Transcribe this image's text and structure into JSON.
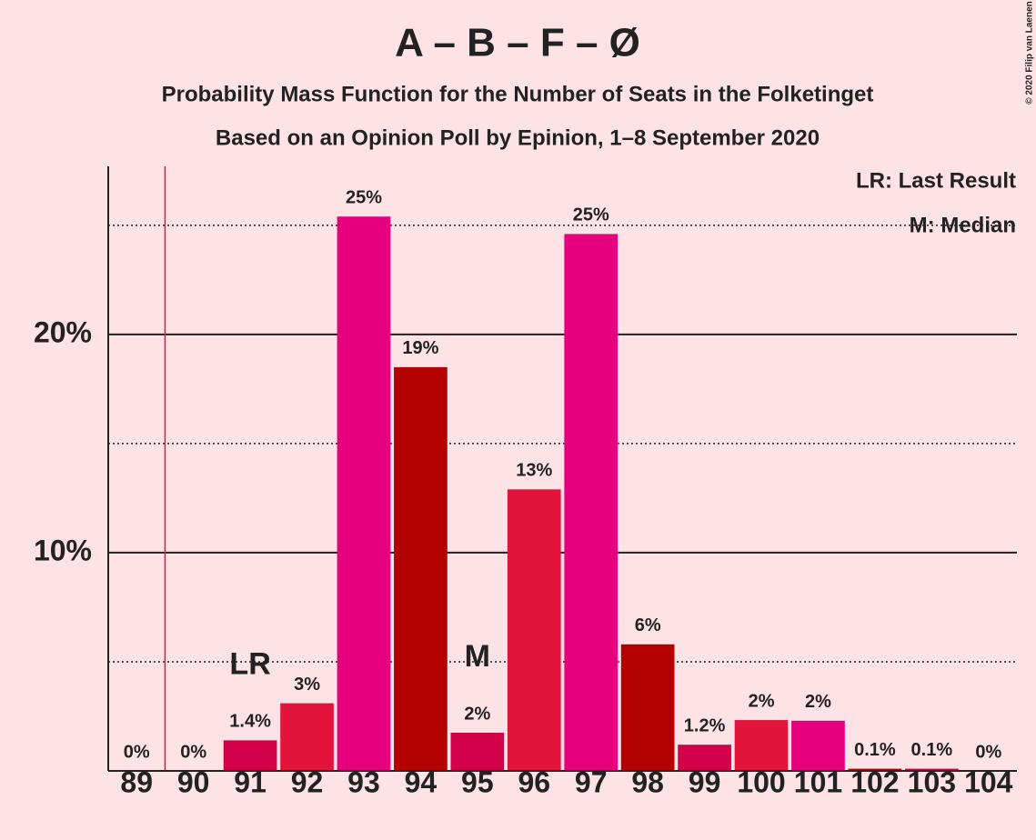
{
  "chart_data": {
    "type": "bar",
    "title": "A – B – F – Ø",
    "subtitle": [
      "Probability Mass Function for the Number of Seats in the Folketinget",
      "Based on an Opinion Poll by Epinion, 1–8 September 2020"
    ],
    "categories": [
      "89",
      "90",
      "91",
      "92",
      "93",
      "94",
      "95",
      "96",
      "97",
      "98",
      "99",
      "100",
      "101",
      "102",
      "103",
      "104"
    ],
    "values": [
      0,
      0,
      1.4,
      3.1,
      25.4,
      18.5,
      1.75,
      12.9,
      24.6,
      5.8,
      1.2,
      2.33,
      2.3,
      0.1,
      0.1,
      0
    ],
    "value_labels": [
      "0%",
      "0%",
      "1.4%",
      "3%",
      "25%",
      "19%",
      "2%",
      "13%",
      "25%",
      "6%",
      "1.2%",
      "2%",
      "2%",
      "0.1%",
      "0.1%",
      "0%"
    ],
    "colors": [
      "#e6007e",
      "#b30000",
      "#d4004a",
      "#e3143c",
      "#e6007e",
      "#b30000",
      "#d4004a",
      "#e3143c",
      "#e6007e",
      "#b30000",
      "#d4004a",
      "#e3143c",
      "#e6007e",
      "#b30000",
      "#d4004a",
      "#e3143c"
    ],
    "ylim": [
      0,
      27.7
    ],
    "yticks": [
      {
        "value": 10,
        "label": "10%"
      },
      {
        "value": 20,
        "label": "20%"
      }
    ],
    "minor_gridlines": [
      5,
      15,
      25
    ],
    "annotations": [
      {
        "text": "LR",
        "x": "91"
      },
      {
        "text": "M",
        "x": "95"
      }
    ],
    "legend": [
      "LR: Last Result",
      "M: Median"
    ],
    "copyright": "© 2020 Filip van Laenen"
  }
}
